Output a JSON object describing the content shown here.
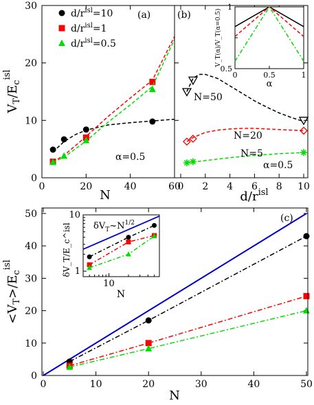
{
  "chart_data": [
    {
      "id": "a",
      "type": "scatter",
      "panel_label": "(a)",
      "xlabel": "N",
      "ylabel": "V_T/E_c^isl",
      "xlim": [
        0,
        60
      ],
      "ylim": [
        0,
        30
      ],
      "x_ticks": [
        0,
        20,
        40,
        60
      ],
      "y_ticks": [
        0,
        10,
        20,
        30
      ],
      "annotation": "α=0.5",
      "legend_position": "top-left",
      "series": [
        {
          "name": "d/r^isl=10",
          "color": "#000000",
          "marker": "circle",
          "x": [
            5,
            10,
            20,
            50
          ],
          "y": [
            4.9,
            6.7,
            8.4,
            9.8
          ],
          "fit_x": [
            5,
            10,
            15,
            20,
            30,
            40,
            50,
            60
          ],
          "fit_y": [
            4.5,
            6.3,
            7.5,
            8.3,
            9.2,
            9.6,
            9.9,
            10.2
          ]
        },
        {
          "name": "d/r^isl=1",
          "color": "#ff0000",
          "marker": "square",
          "x": [
            5,
            20,
            50
          ],
          "y": [
            2.8,
            7.0,
            16.7
          ],
          "fit_x": [
            5,
            10,
            20,
            30,
            40,
            50,
            60
          ],
          "fit_y": [
            2.8,
            3.9,
            7.2,
            10.7,
            13.9,
            17.0,
            24.6
          ]
        },
        {
          "name": "d/r^isl=0.5",
          "color": "#00dd00",
          "marker": "triangle",
          "x": [
            5,
            10,
            20,
            50
          ],
          "y": [
            2.7,
            3.8,
            6.5,
            15.4
          ],
          "fit_x": [
            5,
            10,
            20,
            30,
            40,
            50,
            60
          ],
          "fit_y": [
            2.7,
            3.6,
            6.4,
            9.7,
            12.7,
            15.9,
            24.1
          ]
        }
      ]
    },
    {
      "id": "b",
      "type": "scatter",
      "panel_label": "(b)",
      "xlabel": "d/r^isl",
      "xlim": [
        0,
        10
      ],
      "ylim": [
        0,
        30
      ],
      "x_ticks": [
        0,
        2,
        4,
        6,
        8,
        10
      ],
      "y_ticks": [
        0,
        10,
        20,
        30
      ],
      "annotation": "α=0.5",
      "series": [
        {
          "name": "N=50",
          "color": "#000000",
          "marker": "triangle-down",
          "x": [
            0.5,
            1,
            10
          ],
          "y": [
            15,
            17,
            10
          ],
          "fit_x": [
            0.5,
            1,
            1.5,
            2,
            3,
            4,
            5,
            6,
            7,
            8,
            9,
            10
          ],
          "fit_y": [
            15.0,
            17.3,
            18.0,
            18.0,
            17.3,
            16.0,
            14.7,
            13.4,
            12.3,
            11.3,
            10.5,
            9.8
          ]
        },
        {
          "name": "N=20",
          "color": "#ff0000",
          "marker": "diamond",
          "x": [
            0.5,
            1,
            10
          ],
          "y": [
            6.3,
            6.8,
            8.2
          ],
          "fit_x": [
            0.5,
            1,
            2,
            3,
            4,
            5,
            6,
            7,
            8,
            9,
            10
          ],
          "fit_y": [
            6.3,
            7.0,
            7.9,
            8.3,
            8.5,
            8.6,
            8.6,
            8.5,
            8.4,
            8.3,
            8.2
          ]
        },
        {
          "name": "N=5",
          "color": "#00dd00",
          "marker": "star",
          "x": [
            0.5,
            1,
            10
          ],
          "y": [
            2.6,
            2.8,
            4.4
          ],
          "fit_x": [
            0.5,
            2,
            4,
            6,
            8,
            10
          ],
          "fit_y": [
            2.6,
            3.0,
            3.5,
            3.9,
            4.2,
            4.4
          ]
        }
      ],
      "labels": [
        "N=50",
        "N=20",
        "N=5"
      ]
    },
    {
      "id": "b-inset",
      "type": "line",
      "xlabel": "α",
      "ylabel": "V_T(α)/V_T(α=0.5)",
      "xlim": [
        0,
        1
      ],
      "ylim": [
        0.5,
        1
      ],
      "x_ticks": [
        0,
        0.5,
        1
      ],
      "y_ticks": [
        0.5,
        0.75,
        1
      ],
      "series": [
        {
          "color": "#000000",
          "style": "solid",
          "x": [
            0,
            0.5,
            1
          ],
          "y": [
            0.84,
            1.0,
            0.84
          ]
        },
        {
          "color": "#ff0000",
          "style": "dashed",
          "x": [
            0,
            0.5,
            1
          ],
          "y": [
            0.76,
            1.0,
            0.76
          ]
        },
        {
          "color": "#00dd00",
          "style": "dashdot",
          "x": [
            0,
            0.5,
            1
          ],
          "y": [
            0.56,
            1.0,
            0.56
          ]
        }
      ]
    },
    {
      "id": "c",
      "type": "scatter",
      "panel_label": "(c)",
      "xlabel": "N",
      "ylabel": "<V_T>/E_c^isl",
      "xlim": [
        0,
        50
      ],
      "ylim": [
        0,
        50
      ],
      "x_ticks": [
        0,
        10,
        20,
        30,
        40,
        50
      ],
      "y_ticks": [
        0,
        10,
        20,
        30,
        40,
        50
      ],
      "reference_line": {
        "color": "#0000cc",
        "x": [
          0,
          50
        ],
        "y": [
          0,
          50
        ]
      },
      "series": [
        {
          "color": "#000000",
          "marker": "circle",
          "x": [
            5,
            20,
            50
          ],
          "y": [
            4.3,
            17.0,
            43.0
          ]
        },
        {
          "color": "#ff0000",
          "marker": "square",
          "x": [
            5,
            20,
            50
          ],
          "y": [
            3.0,
            10.0,
            24.5
          ]
        },
        {
          "color": "#00dd00",
          "marker": "triangle",
          "x": [
            5,
            20,
            50
          ],
          "y": [
            2.6,
            8.3,
            20.0
          ]
        }
      ]
    },
    {
      "id": "c-inset",
      "type": "scatter",
      "log_x": true,
      "log_y": true,
      "xlabel": "N",
      "ylabel": "δV_T/E_c^isl",
      "annotation": "δV_T~N^1/2",
      "xlim": [
        4,
        60
      ],
      "ylim": [
        0.8,
        10
      ],
      "x_tick_labels": [
        "10"
      ],
      "y_tick_labels": [
        "1",
        "10"
      ],
      "reference_line": {
        "color": "#0000cc",
        "x": [
          4,
          60
        ],
        "y": [
          2.45,
          9.5
        ]
      },
      "series": [
        {
          "color": "#000000",
          "marker": "circle",
          "x": [
            5,
            20,
            50
          ],
          "y": [
            1.8,
            4.0,
            6.5
          ]
        },
        {
          "color": "#ff0000",
          "marker": "square",
          "x": [
            5,
            20,
            50
          ],
          "y": [
            1.3,
            3.3,
            4.3
          ]
        },
        {
          "color": "#00dd00",
          "marker": "triangle",
          "x": [
            5,
            20,
            50
          ],
          "y": [
            1.15,
            2.0,
            4.2
          ]
        }
      ]
    }
  ]
}
